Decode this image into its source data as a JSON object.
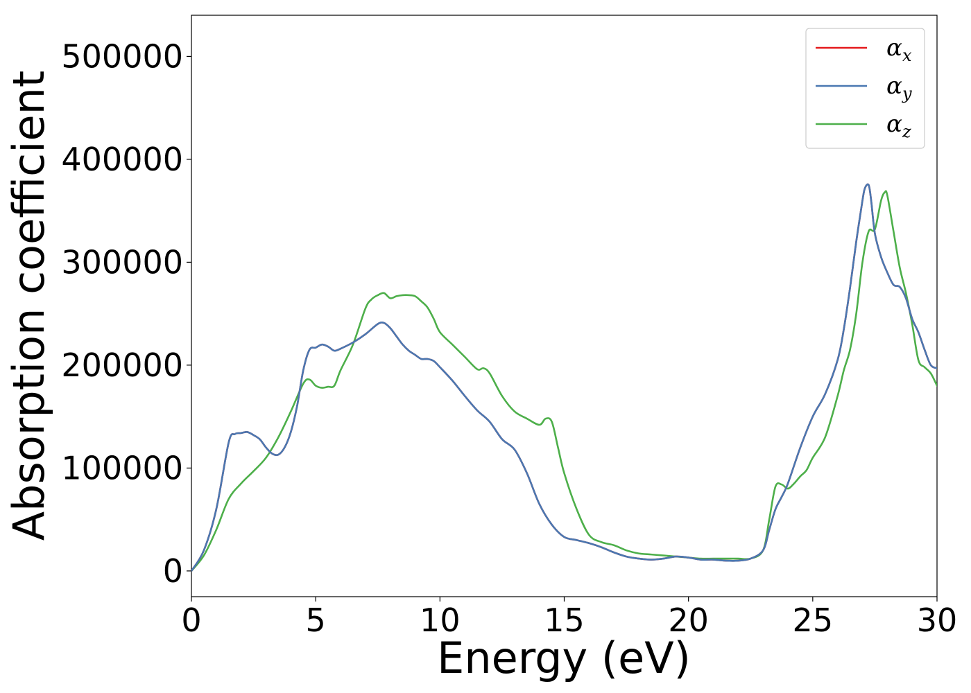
{
  "chart_data": {
    "type": "line",
    "xlabel": "Energy (eV)",
    "ylabel": "Absorption coefficient",
    "xlim": [
      0,
      30
    ],
    "ylim": [
      -25000,
      540000
    ],
    "xticks": [
      0,
      5,
      10,
      15,
      20,
      25,
      30
    ],
    "yticks": [
      0,
      100000,
      200000,
      300000,
      400000,
      500000
    ],
    "xtick_labels": [
      "0",
      "5",
      "10",
      "15",
      "20",
      "25",
      "30"
    ],
    "ytick_labels": [
      "0",
      "100000",
      "200000",
      "300000",
      "400000",
      "500000"
    ],
    "grid": false,
    "legend_position": "top-right",
    "series": [
      {
        "name": "α",
        "subscript": "x",
        "color": "#e41a1c",
        "x": [
          0,
          0.5,
          1,
          1.5,
          1.75,
          2,
          2.25,
          2.5,
          2.75,
          3,
          3.25,
          3.5,
          3.75,
          4,
          4.25,
          4.5,
          4.75,
          5,
          5.25,
          5.5,
          5.75,
          6,
          6.5,
          7,
          7.5,
          7.75,
          8,
          8.25,
          8.5,
          8.75,
          9,
          9.25,
          9.5,
          9.75,
          10,
          10.5,
          11,
          11.5,
          12,
          12.5,
          13,
          13.5,
          14,
          14.5,
          15,
          15.5,
          16,
          16.5,
          17,
          17.5,
          18,
          18.5,
          19,
          19.5,
          20,
          20.5,
          21,
          21.5,
          22,
          22.5,
          23,
          23.25,
          23.5,
          23.75,
          24,
          24.5,
          25,
          25.5,
          26,
          26.25,
          26.5,
          26.75,
          27,
          27.1,
          27.25,
          27.35,
          27.5,
          27.75,
          28,
          28.25,
          28.5,
          28.75,
          29,
          29.25,
          29.5,
          29.75,
          30
        ],
        "y": [
          0,
          20000,
          60000,
          125000,
          133000,
          134000,
          135000,
          132000,
          128000,
          120000,
          114000,
          113000,
          120000,
          135000,
          160000,
          195000,
          215000,
          217000,
          220000,
          218000,
          214000,
          216000,
          222000,
          230000,
          240000,
          241000,
          236000,
          228000,
          220000,
          214000,
          210000,
          206000,
          206000,
          204000,
          198000,
          185000,
          170000,
          156000,
          145000,
          128000,
          118000,
          95000,
          65000,
          45000,
          33000,
          30000,
          27000,
          23000,
          18000,
          14000,
          12000,
          11000,
          12000,
          14000,
          13000,
          11000,
          11000,
          10000,
          10000,
          12000,
          20000,
          40000,
          60000,
          72000,
          85000,
          120000,
          150000,
          172000,
          205000,
          235000,
          275000,
          320000,
          360000,
          372000,
          375000,
          360000,
          328000,
          305000,
          290000,
          278000,
          276000,
          265000,
          245000,
          232000,
          215000,
          200000,
          197000
        ]
      },
      {
        "name": "α",
        "subscript": "y",
        "color": "#4a78b1",
        "x": [
          0,
          0.5,
          1,
          1.5,
          1.75,
          2,
          2.25,
          2.5,
          2.75,
          3,
          3.25,
          3.5,
          3.75,
          4,
          4.25,
          4.5,
          4.75,
          5,
          5.25,
          5.5,
          5.75,
          6,
          6.5,
          7,
          7.5,
          7.75,
          8,
          8.25,
          8.5,
          8.75,
          9,
          9.25,
          9.5,
          9.75,
          10,
          10.5,
          11,
          11.5,
          12,
          12.5,
          13,
          13.5,
          14,
          14.5,
          15,
          15.5,
          16,
          16.5,
          17,
          17.5,
          18,
          18.5,
          19,
          19.5,
          20,
          20.5,
          21,
          21.5,
          22,
          22.5,
          23,
          23.25,
          23.5,
          23.75,
          24,
          24.5,
          25,
          25.5,
          26,
          26.25,
          26.5,
          26.75,
          27,
          27.1,
          27.25,
          27.35,
          27.5,
          27.75,
          28,
          28.25,
          28.5,
          28.75,
          29,
          29.25,
          29.5,
          29.75,
          30
        ],
        "y": [
          0,
          20000,
          60000,
          125000,
          133000,
          134000,
          135000,
          132000,
          128000,
          120000,
          114000,
          113000,
          120000,
          135000,
          160000,
          195000,
          215000,
          217000,
          220000,
          218000,
          214000,
          216000,
          222000,
          230000,
          240000,
          241000,
          236000,
          228000,
          220000,
          214000,
          210000,
          206000,
          206000,
          204000,
          198000,
          185000,
          170000,
          156000,
          145000,
          128000,
          118000,
          95000,
          65000,
          45000,
          33000,
          30000,
          27000,
          23000,
          18000,
          14000,
          12000,
          11000,
          12000,
          14000,
          13000,
          11000,
          11000,
          10000,
          10000,
          12000,
          20000,
          40000,
          60000,
          72000,
          85000,
          120000,
          150000,
          172000,
          205000,
          235000,
          275000,
          320000,
          360000,
          372000,
          375000,
          360000,
          328000,
          305000,
          290000,
          278000,
          276000,
          265000,
          245000,
          232000,
          215000,
          200000,
          197000
        ]
      },
      {
        "name": "α",
        "subscript": "z",
        "color": "#4daf4a",
        "x": [
          0,
          0.5,
          1,
          1.5,
          2,
          2.5,
          3,
          3.5,
          4,
          4.5,
          4.75,
          5,
          5.25,
          5.5,
          5.75,
          6,
          6.5,
          7,
          7.25,
          7.5,
          7.75,
          8,
          8.25,
          8.5,
          8.75,
          9,
          9.25,
          9.5,
          9.75,
          10,
          10.5,
          11,
          11.5,
          11.75,
          12,
          12.5,
          13,
          13.5,
          14,
          14.25,
          14.5,
          14.75,
          15,
          15.5,
          16,
          16.5,
          17,
          17.5,
          18,
          18.5,
          19,
          19.5,
          20,
          20.5,
          21,
          21.5,
          22,
          22.5,
          23,
          23.25,
          23.5,
          23.75,
          24,
          24.25,
          24.5,
          24.75,
          25,
          25.5,
          26,
          26.25,
          26.5,
          26.75,
          27,
          27.25,
          27.5,
          27.75,
          27.9,
          28,
          28.25,
          28.5,
          28.75,
          29,
          29.25,
          29.5,
          29.75,
          30
        ],
        "y": [
          0,
          15000,
          40000,
          70000,
          85000,
          97000,
          110000,
          130000,
          155000,
          182000,
          186000,
          180000,
          178000,
          179000,
          180000,
          195000,
          220000,
          255000,
          264000,
          268000,
          270000,
          265000,
          267000,
          268000,
          268000,
          267000,
          262000,
          256000,
          245000,
          232000,
          220000,
          208000,
          196000,
          197000,
          192000,
          170000,
          155000,
          148000,
          142000,
          148000,
          145000,
          120000,
          95000,
          60000,
          35000,
          28000,
          25000,
          20000,
          17000,
          16000,
          15000,
          14000,
          13000,
          12000,
          12000,
          12000,
          12000,
          12000,
          20000,
          50000,
          82000,
          84000,
          80000,
          85000,
          92000,
          98000,
          110000,
          130000,
          170000,
          195000,
          215000,
          250000,
          300000,
          330000,
          332000,
          360000,
          368000,
          365000,
          330000,
          295000,
          270000,
          240000,
          205000,
          198000,
          192000,
          180000
        ]
      }
    ]
  }
}
